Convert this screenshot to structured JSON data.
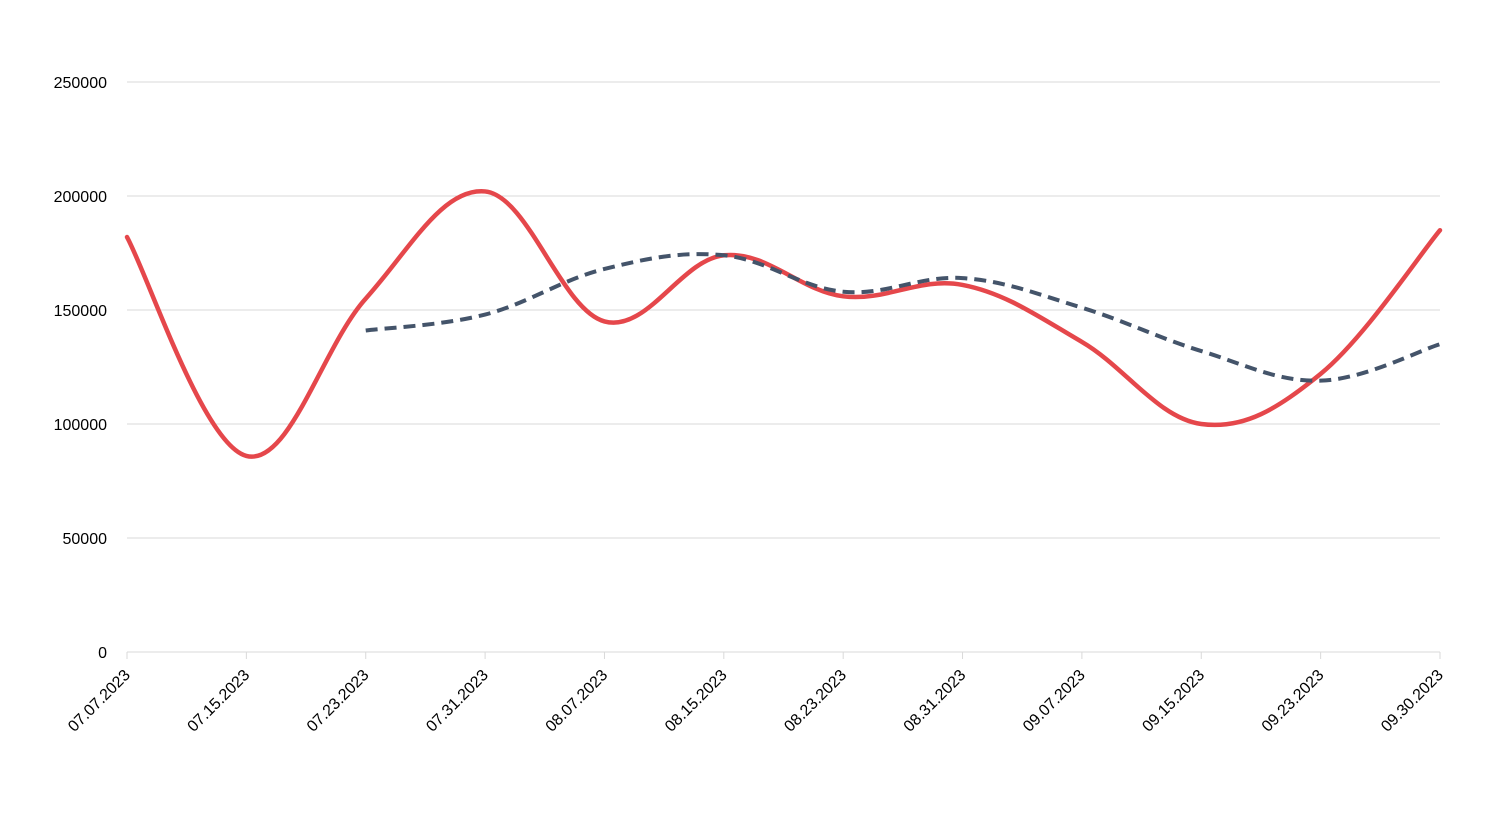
{
  "chart_data": {
    "type": "line",
    "title": "",
    "xlabel": "",
    "ylabel": "",
    "ylim": [
      0,
      250000
    ],
    "yticks": [
      "0",
      "50000",
      "100000",
      "150000",
      "200000",
      "250000"
    ],
    "categories": [
      "07.07.2023",
      "07.15.2023",
      "07.23.2023",
      "07.31.2023",
      "08.07.2023",
      "08.15.2023",
      "08.23.2023",
      "08.31.2023",
      "09.07.2023",
      "09.15.2023",
      "09.23.2023",
      "09.30.2023"
    ],
    "grid": true,
    "legend": "none",
    "series": [
      {
        "color": "#e5474b",
        "style": "solid",
        "values": [
          182000,
          86000,
          155000,
          202000,
          145000,
          174000,
          156000,
          161000,
          136000,
          100000,
          122000,
          185000
        ]
      },
      {
        "color": "#44546a",
        "style": "dashed",
        "values": [
          null,
          null,
          141000,
          148000,
          168000,
          174000,
          158000,
          164000,
          151000,
          132000,
          119000,
          135000
        ]
      }
    ]
  }
}
